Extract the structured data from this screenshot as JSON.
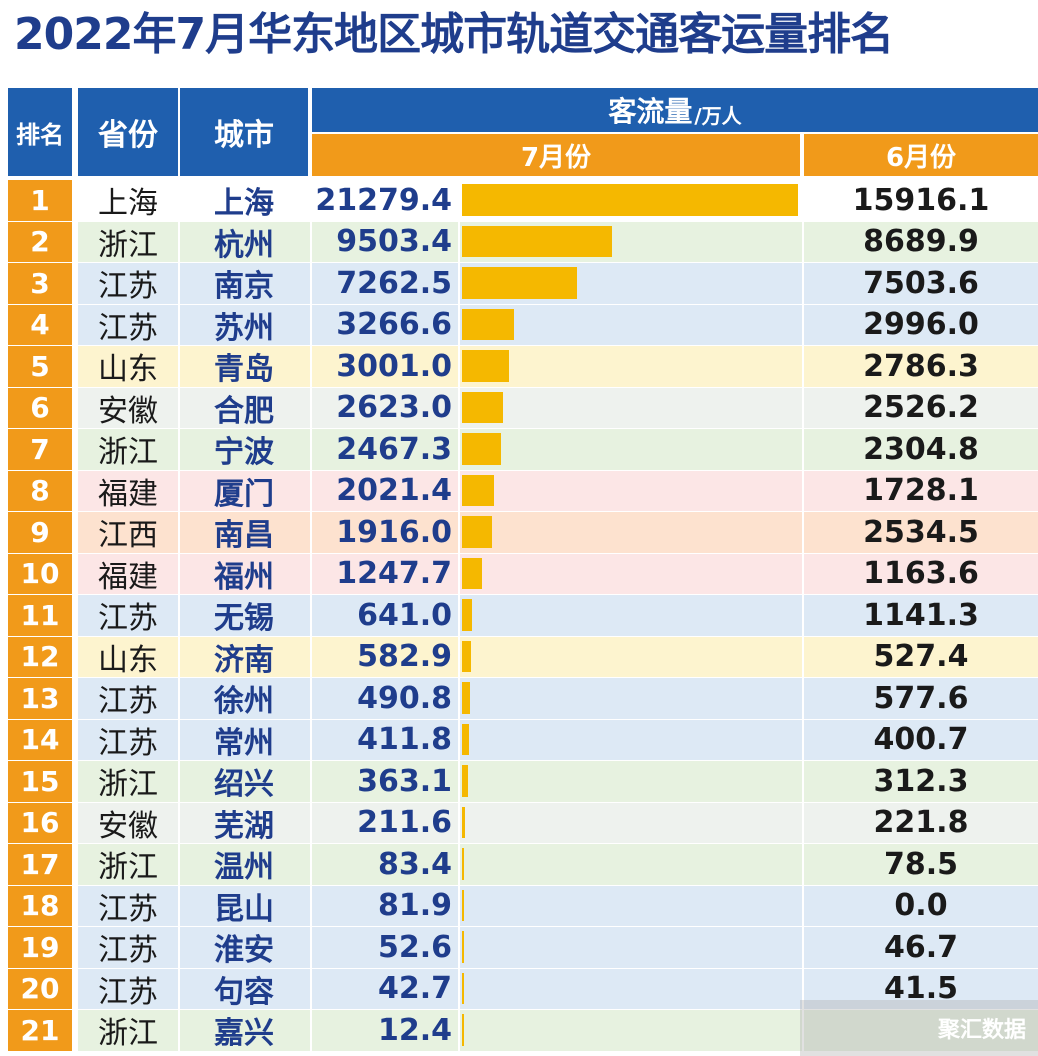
{
  "title": "2022年7月华东地区城市轨道交通客运量排名",
  "header": {
    "rank": "排名",
    "province": "省份",
    "city": "城市",
    "flow": "客流量",
    "unit": "/万人",
    "july": "7月份",
    "june": "6月份"
  },
  "watermark": "聚汇数据",
  "colors": {
    "blue": "#1f5fae",
    "orange": "#f19a1a",
    "bar": "#f5b800",
    "title": "#1f3d8c"
  },
  "chart_data": {
    "type": "table",
    "title": "2022年7月华东地区城市轨道交通客运量排名",
    "unit": "万人",
    "columns": [
      "排名",
      "省份",
      "城市",
      "7月份",
      "6月份"
    ],
    "bar_max": 21279.4,
    "rows": [
      {
        "rank": "1",
        "province": "上海",
        "city": "上海",
        "july": "21279.4",
        "june": "15916.1",
        "tint": "#ffffff"
      },
      {
        "rank": "2",
        "province": "浙江",
        "city": "杭州",
        "july": "9503.4",
        "june": "8689.9",
        "tint": "#e7f2e0"
      },
      {
        "rank": "3",
        "province": "江苏",
        "city": "南京",
        "july": "7262.5",
        "june": "7503.6",
        "tint": "#dde9f5"
      },
      {
        "rank": "4",
        "province": "江苏",
        "city": "苏州",
        "july": "3266.6",
        "june": "2996.0",
        "tint": "#dde9f5"
      },
      {
        "rank": "5",
        "province": "山东",
        "city": "青岛",
        "july": "3001.0",
        "june": "2786.3",
        "tint": "#fdf4cf"
      },
      {
        "rank": "6",
        "province": "安徽",
        "city": "合肥",
        "july": "2623.0",
        "june": "2526.2",
        "tint": "#eef2ee"
      },
      {
        "rank": "7",
        "province": "浙江",
        "city": "宁波",
        "july": "2467.3",
        "june": "2304.8",
        "tint": "#e7f2e0"
      },
      {
        "rank": "8",
        "province": "福建",
        "city": "厦门",
        "july": "2021.4",
        "june": "1728.1",
        "tint": "#fce6e6"
      },
      {
        "rank": "9",
        "province": "江西",
        "city": "南昌",
        "july": "1916.0",
        "june": "2534.5",
        "tint": "#fde2cf"
      },
      {
        "rank": "10",
        "province": "福建",
        "city": "福州",
        "july": "1247.7",
        "june": "1163.6",
        "tint": "#fce6e6"
      },
      {
        "rank": "11",
        "province": "江苏",
        "city": "无锡",
        "july": "641.0",
        "june": "1141.3",
        "tint": "#dde9f5"
      },
      {
        "rank": "12",
        "province": "山东",
        "city": "济南",
        "july": "582.9",
        "june": "527.4",
        "tint": "#fdf4cf"
      },
      {
        "rank": "13",
        "province": "江苏",
        "city": "徐州",
        "july": "490.8",
        "june": "577.6",
        "tint": "#dde9f5"
      },
      {
        "rank": "14",
        "province": "江苏",
        "city": "常州",
        "july": "411.8",
        "june": "400.7",
        "tint": "#dde9f5"
      },
      {
        "rank": "15",
        "province": "浙江",
        "city": "绍兴",
        "july": "363.1",
        "june": "312.3",
        "tint": "#e7f2e0"
      },
      {
        "rank": "16",
        "province": "安徽",
        "city": "芜湖",
        "july": "211.6",
        "june": "221.8",
        "tint": "#eef2ee"
      },
      {
        "rank": "17",
        "province": "浙江",
        "city": "温州",
        "july": "83.4",
        "june": "78.5",
        "tint": "#e7f2e0"
      },
      {
        "rank": "18",
        "province": "江苏",
        "city": "昆山",
        "july": "81.9",
        "june": "0.0",
        "tint": "#dde9f5"
      },
      {
        "rank": "19",
        "province": "江苏",
        "city": "淮安",
        "july": "52.6",
        "june": "46.7",
        "tint": "#dde9f5"
      },
      {
        "rank": "20",
        "province": "江苏",
        "city": "句容",
        "july": "42.7",
        "june": "41.5",
        "tint": "#dde9f5"
      },
      {
        "rank": "21",
        "province": "浙江",
        "city": "嘉兴",
        "july": "12.4",
        "june": "",
        "tint": "#e7f2e0"
      }
    ]
  }
}
